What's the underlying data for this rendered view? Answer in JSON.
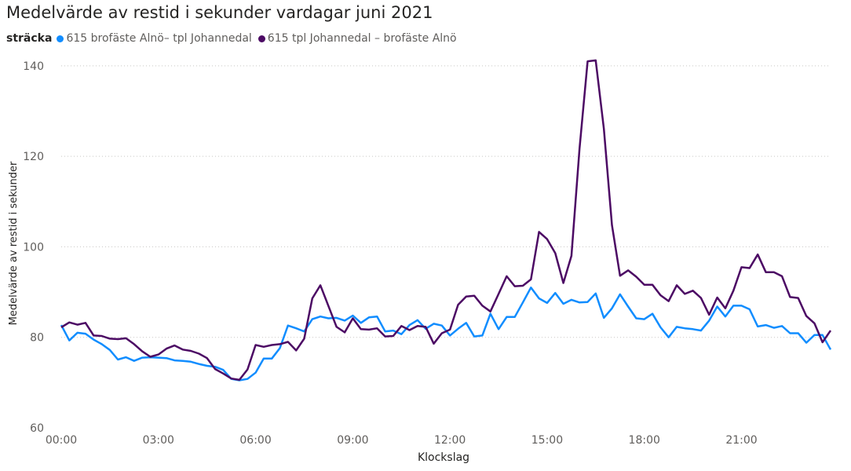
{
  "chart_data": {
    "type": "line",
    "title": "Medelvärde av restid i sekunder vardagar juni 2021",
    "legend_title": "sträcka",
    "legend_position": "top-left",
    "xlabel": "Klockslag",
    "ylabel": "Medelvärde av restid i sekunder",
    "ylim": [
      60,
      145
    ],
    "xlim": [
      0,
      23.75
    ],
    "yticks": [
      60,
      80,
      100,
      120,
      140
    ],
    "xticks": [
      {
        "value": 0,
        "label": "00:00"
      },
      {
        "value": 3,
        "label": "03:00"
      },
      {
        "value": 6,
        "label": "06:00"
      },
      {
        "value": 9,
        "label": "09:00"
      },
      {
        "value": 12,
        "label": "12:00"
      },
      {
        "value": 15,
        "label": "15:00"
      },
      {
        "value": 18,
        "label": "18:00"
      },
      {
        "value": 21,
        "label": "21:00"
      }
    ],
    "grid": "horizontal-dotted",
    "x_step_hours": 0.25,
    "series": [
      {
        "name": "615 brofäste Alnö– tpl Johannedal",
        "color": "#118dff",
        "values": [
          82.7,
          79.3,
          81.0,
          80.8,
          79.5,
          78.5,
          77.2,
          75.1,
          75.6,
          74.8,
          75.5,
          75.6,
          75.5,
          75.4,
          74.9,
          74.8,
          74.6,
          74.1,
          73.7,
          73.5,
          72.8,
          70.8,
          70.5,
          70.8,
          72.2,
          75.3,
          75.3,
          77.6,
          82.6,
          82.0,
          81.3,
          84.0,
          84.6,
          84.2,
          84.3,
          83.7,
          84.8,
          83.2,
          84.4,
          84.6,
          81.3,
          81.5,
          80.7,
          82.7,
          83.8,
          81.9,
          83.0,
          82.6,
          80.4,
          81.9,
          83.2,
          80.2,
          80.4,
          85.2,
          81.8,
          84.5,
          84.5,
          87.7,
          91.0,
          88.6,
          87.6,
          89.8,
          87.4,
          88.3,
          87.7,
          87.8,
          89.7,
          84.3,
          86.4,
          89.5,
          86.8,
          84.2,
          84.0,
          85.2,
          82.2,
          80.0,
          82.3,
          82.0,
          81.8,
          81.5,
          83.7,
          86.8,
          84.6,
          87.0,
          87.0,
          86.2,
          82.4,
          82.7,
          82.1,
          82.5,
          80.9,
          80.9,
          78.8,
          80.5,
          80.5,
          77.3
        ]
      },
      {
        "name": "615 tpl Johannedal – brofäste Alnö",
        "color": "#4c0a64",
        "values": [
          82.2,
          83.3,
          82.8,
          83.2,
          80.4,
          80.3,
          79.7,
          79.6,
          79.8,
          78.5,
          76.9,
          75.7,
          76.2,
          77.5,
          78.2,
          77.3,
          77.0,
          76.4,
          75.4,
          73.0,
          72.0,
          70.9,
          70.6,
          72.9,
          78.3,
          77.9,
          78.3,
          78.5,
          79.0,
          77.1,
          79.7,
          88.6,
          91.5,
          86.9,
          82.3,
          81.1,
          84.2,
          81.8,
          81.7,
          82.0,
          80.2,
          80.3,
          82.5,
          81.6,
          82.5,
          82.3,
          78.6,
          80.9,
          81.7,
          87.2,
          89.0,
          89.2,
          87.0,
          85.7,
          89.6,
          93.5,
          91.3,
          91.4,
          92.8,
          103.3,
          101.7,
          98.6,
          92.0,
          98.0,
          121.7,
          141.0,
          141.2,
          126.1,
          104.8,
          93.6,
          94.8,
          93.4,
          91.6,
          91.6,
          89.3,
          88.0,
          91.5,
          89.6,
          90.3,
          88.7,
          85.0,
          88.8,
          86.4,
          90.3,
          95.5,
          95.3,
          98.3,
          94.4,
          94.4,
          93.5,
          88.9,
          88.7,
          84.7,
          83.1,
          78.9,
          81.5
        ]
      }
    ]
  }
}
